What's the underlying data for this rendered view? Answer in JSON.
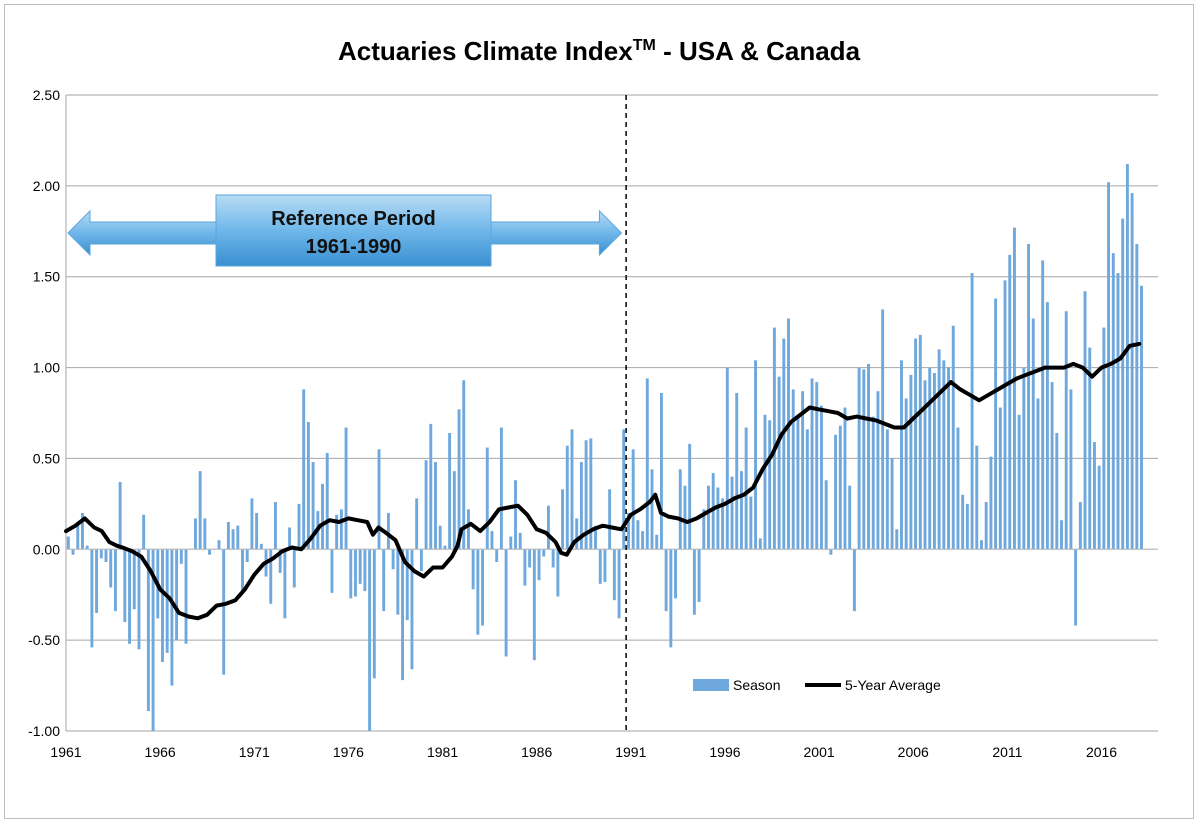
{
  "chart_data": {
    "type": "bar",
    "title": "Actuaries Climate Index",
    "title_superscript": "TM",
    "title_suffix": " - USA & Canada",
    "xlabel": "",
    "ylabel": "",
    "ylim": [
      -1.0,
      2.5
    ],
    "xlim": [
      1961,
      2019
    ],
    "yticks": [
      "-1.00",
      "-0.50",
      "0.00",
      "0.50",
      "1.00",
      "1.50",
      "2.00",
      "2.50"
    ],
    "xticks": [
      "1961",
      "1966",
      "1971",
      "1976",
      "1981",
      "1986",
      "1991",
      "1996",
      "2001",
      "2006",
      "2011",
      "2016"
    ],
    "grid": true,
    "legend_position": "bottom-right",
    "annotation": {
      "line1": "Reference Period",
      "line2": "1961-1990",
      "range": [
        1961,
        1990
      ]
    },
    "divider_x": 1990.75,
    "series": [
      {
        "name": "Season",
        "kind": "bar",
        "color": "#6fa8dc",
        "x_start": 1961.0,
        "step": 0.25,
        "values": [
          0.07,
          -0.03,
          0.15,
          0.2,
          0.02,
          -0.54,
          -0.35,
          -0.05,
          -0.07,
          -0.21,
          -0.34,
          0.37,
          -0.4,
          -0.52,
          -0.33,
          -0.55,
          0.19,
          -0.89,
          -1.0,
          -0.38,
          -0.62,
          -0.57,
          -0.75,
          -0.5,
          -0.08,
          -0.52,
          0.0,
          0.17,
          0.43,
          0.17,
          -0.03,
          0.0,
          0.05,
          -0.69,
          0.15,
          0.11,
          0.13,
          -0.23,
          -0.07,
          0.28,
          0.2,
          0.03,
          -0.15,
          -0.3,
          0.26,
          -0.13,
          -0.38,
          0.12,
          -0.21,
          0.25,
          0.88,
          0.7,
          0.48,
          0.21,
          0.36,
          0.53,
          -0.24,
          0.19,
          0.22,
          0.67,
          -0.27,
          -0.26,
          -0.19,
          -0.23,
          -1.0,
          -0.71,
          0.55,
          -0.34,
          0.2,
          -0.11,
          -0.36,
          -0.72,
          -0.39,
          -0.66,
          0.28,
          -0.12,
          0.49,
          0.69,
          0.48,
          0.13,
          0.02,
          0.64,
          0.43,
          0.77,
          0.93,
          0.22,
          -0.22,
          -0.47,
          -0.42,
          0.56,
          0.1,
          -0.07,
          0.67,
          -0.59,
          0.07,
          0.38,
          0.09,
          -0.2,
          -0.1,
          -0.61,
          -0.17,
          -0.04,
          0.24,
          -0.1,
          -0.26,
          0.33,
          0.57,
          0.66,
          0.17,
          0.48,
          0.6,
          0.61,
          0.13,
          -0.19,
          -0.18,
          0.33,
          -0.28,
          -0.38,
          0.66,
          0.2,
          0.55,
          0.16,
          0.1,
          0.94,
          0.44,
          0.08,
          0.86,
          -0.34,
          -0.54,
          -0.27,
          0.44,
          0.35,
          0.58,
          -0.36,
          -0.29,
          0.22,
          0.35,
          0.42,
          0.34,
          0.28,
          1.0,
          0.4,
          0.86,
          0.43,
          0.67,
          0.29,
          1.04,
          0.06,
          0.74,
          0.71,
          1.22,
          0.95,
          1.16,
          1.27,
          0.88,
          0.73,
          0.87,
          0.66,
          0.94,
          0.92,
          0.79,
          0.38,
          -0.03,
          0.63,
          0.68,
          0.78,
          0.35,
          -0.34,
          1.0,
          0.99,
          1.02,
          0.73,
          0.87,
          1.32,
          0.66,
          0.5,
          0.11,
          1.04,
          0.83,
          0.96,
          1.16,
          1.18,
          0.93,
          1.0,
          0.97,
          1.1,
          1.04,
          1.0,
          1.23,
          0.67,
          0.3,
          0.25,
          1.52,
          0.57,
          0.05,
          0.26,
          0.51,
          1.38,
          0.78,
          1.48,
          1.62,
          1.77,
          0.74,
          1.0,
          1.68,
          1.27,
          0.83,
          1.59,
          1.36,
          0.92,
          0.64,
          0.16,
          1.31,
          0.88,
          -0.42,
          0.26,
          1.42,
          1.11,
          0.59,
          0.46,
          1.22,
          2.02,
          1.63,
          1.52,
          1.82,
          2.12,
          1.96,
          1.68,
          1.45
        ]
      },
      {
        "name": "5-Year Average",
        "kind": "line",
        "color": "#000000",
        "x": [
          1961.0,
          1961.5,
          1962.0,
          1962.5,
          1962.9,
          1963.3,
          1963.7,
          1964.0,
          1964.5,
          1965.0,
          1965.5,
          1966.0,
          1966.5,
          1967.0,
          1967.5,
          1968.0,
          1968.5,
          1969.0,
          1969.5,
          1970.0,
          1970.5,
          1971.0,
          1971.5,
          1972.0,
          1972.5,
          1973.0,
          1973.5,
          1974.0,
          1974.5,
          1975.0,
          1975.5,
          1976.0,
          1976.5,
          1977.0,
          1977.3,
          1977.6,
          1978.0,
          1978.5,
          1979.0,
          1979.5,
          1980.0,
          1980.5,
          1981.0,
          1981.5,
          1981.8,
          1982.0,
          1982.5,
          1983.0,
          1983.5,
          1984.0,
          1984.5,
          1985.0,
          1985.5,
          1986.0,
          1986.5,
          1987.0,
          1987.3,
          1987.6,
          1988.0,
          1988.5,
          1989.0,
          1989.5,
          1990.0,
          1990.5,
          1991.0,
          1991.5,
          1992.0,
          1992.3,
          1992.6,
          1993.0,
          1993.5,
          1994.0,
          1994.5,
          1995.0,
          1995.5,
          1996.0,
          1996.5,
          1997.0,
          1997.5,
          1998.0,
          1998.5,
          1999.0,
          1999.5,
          2000.0,
          2000.5,
          2001.0,
          2001.5,
          2002.0,
          2002.5,
          2003.0,
          2003.5,
          2004.0,
          2004.5,
          2005.0,
          2005.5,
          2006.0,
          2006.5,
          2007.0,
          2007.5,
          2008.0,
          2008.5,
          2009.0,
          2009.5,
          2010.0,
          2010.5,
          2011.0,
          2011.5,
          2012.0,
          2012.5,
          2013.0,
          2013.5,
          2014.0,
          2014.5,
          2015.0,
          2015.5,
          2016.0,
          2016.5,
          2017.0,
          2017.5,
          2018.0
        ],
        "values": [
          0.1,
          0.13,
          0.17,
          0.12,
          0.1,
          0.04,
          0.02,
          0.01,
          -0.01,
          -0.04,
          -0.12,
          -0.22,
          -0.27,
          -0.35,
          -0.37,
          -0.38,
          -0.36,
          -0.31,
          -0.3,
          -0.28,
          -0.22,
          -0.14,
          -0.08,
          -0.05,
          -0.01,
          0.01,
          0.0,
          0.06,
          0.13,
          0.16,
          0.15,
          0.17,
          0.16,
          0.15,
          0.08,
          0.12,
          0.09,
          0.05,
          -0.07,
          -0.12,
          -0.15,
          -0.1,
          -0.1,
          -0.04,
          0.02,
          0.11,
          0.14,
          0.1,
          0.15,
          0.22,
          0.23,
          0.24,
          0.19,
          0.11,
          0.09,
          0.04,
          -0.02,
          -0.03,
          0.04,
          0.08,
          0.11,
          0.13,
          0.12,
          0.11,
          0.19,
          0.22,
          0.26,
          0.3,
          0.2,
          0.18,
          0.17,
          0.15,
          0.17,
          0.2,
          0.23,
          0.25,
          0.28,
          0.3,
          0.34,
          0.44,
          0.52,
          0.63,
          0.7,
          0.74,
          0.78,
          0.77,
          0.76,
          0.75,
          0.72,
          0.73,
          0.72,
          0.71,
          0.69,
          0.67,
          0.67,
          0.72,
          0.77,
          0.82,
          0.87,
          0.92,
          0.88,
          0.85,
          0.82,
          0.85,
          0.88,
          0.91,
          0.94,
          0.96,
          0.98,
          1.0,
          1.0,
          1.0,
          1.02,
          1.0,
          0.95,
          1.0,
          1.02,
          1.05,
          1.12,
          1.13
        ]
      }
    ]
  }
}
